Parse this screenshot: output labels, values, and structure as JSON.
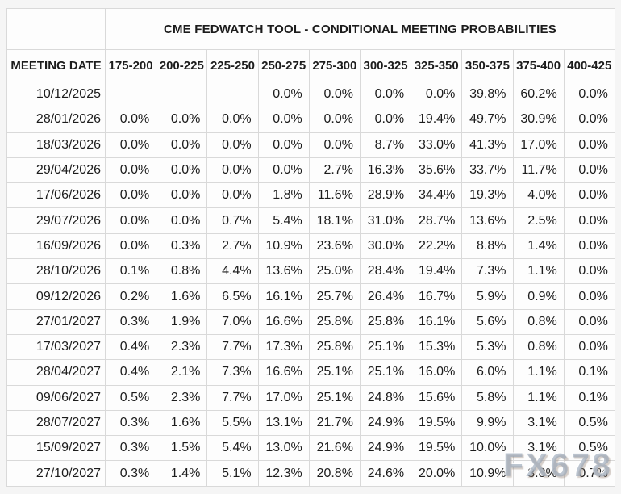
{
  "page": {
    "title": "CME FEDWATCH TOOL - CONDITIONAL MEETING PROBABILITIES",
    "watermark": "FX678"
  },
  "colors": {
    "highlight_cyan": "#c2edf6",
    "highlight_yellow": "#f5f4d3",
    "border": "#d9d9d9",
    "cell_bg": "#fdfdfd",
    "page_bg": "#f5f5f5",
    "text": "#1c1c1c"
  },
  "chart_data": {
    "type": "table",
    "title": "CME FEDWATCH TOOL - CONDITIONAL MEETING PROBABILITIES",
    "columns": [
      "MEETING DATE",
      "175-200",
      "200-225",
      "225-250",
      "250-275",
      "275-300",
      "300-325",
      "325-350",
      "350-375",
      "375-400",
      "400-425"
    ],
    "highlight_colors": {
      "cyan": "#c2edf6",
      "yellow": "#f5f4d3"
    },
    "rows": [
      {
        "date": "10/12/2025",
        "values": [
          "",
          "",
          "",
          "0.0%",
          "0.0%",
          "0.0%",
          "0.0%",
          "39.8%",
          "60.2%",
          "0.0%"
        ],
        "highlights": [
          "",
          "",
          "",
          "",
          "",
          "",
          "",
          "",
          "cyan",
          ""
        ]
      },
      {
        "date": "28/01/2026",
        "values": [
          "0.0%",
          "0.0%",
          "0.0%",
          "0.0%",
          "0.0%",
          "0.0%",
          "19.4%",
          "49.7%",
          "30.9%",
          "0.0%"
        ],
        "highlights": [
          "",
          "",
          "",
          "",
          "",
          "",
          "",
          "cyan",
          "yellow",
          ""
        ]
      },
      {
        "date": "18/03/2026",
        "values": [
          "0.0%",
          "0.0%",
          "0.0%",
          "0.0%",
          "0.0%",
          "8.7%",
          "33.0%",
          "41.3%",
          "17.0%",
          "0.0%"
        ],
        "highlights": [
          "",
          "",
          "",
          "",
          "",
          "",
          "",
          "cyan",
          "yellow",
          ""
        ]
      },
      {
        "date": "29/04/2026",
        "values": [
          "0.0%",
          "0.0%",
          "0.0%",
          "0.0%",
          "2.7%",
          "16.3%",
          "35.6%",
          "33.7%",
          "11.7%",
          "0.0%"
        ],
        "highlights": [
          "",
          "",
          "",
          "",
          "",
          "",
          "cyan",
          "yellow",
          "yellow",
          ""
        ]
      },
      {
        "date": "17/06/2026",
        "values": [
          "0.0%",
          "0.0%",
          "0.0%",
          "1.8%",
          "11.6%",
          "28.9%",
          "34.4%",
          "19.3%",
          "4.0%",
          "0.0%"
        ],
        "highlights": [
          "",
          "",
          "",
          "",
          "",
          "",
          "cyan",
          "yellow",
          "yellow",
          ""
        ]
      },
      {
        "date": "29/07/2026",
        "values": [
          "0.0%",
          "0.0%",
          "0.7%",
          "5.4%",
          "18.1%",
          "31.0%",
          "28.7%",
          "13.6%",
          "2.5%",
          "0.0%"
        ],
        "highlights": [
          "",
          "",
          "",
          "",
          "",
          "cyan",
          "yellow",
          "yellow",
          "yellow",
          ""
        ]
      },
      {
        "date": "16/09/2026",
        "values": [
          "0.0%",
          "0.3%",
          "2.7%",
          "10.9%",
          "23.6%",
          "30.0%",
          "22.2%",
          "8.8%",
          "1.4%",
          "0.0%"
        ],
        "highlights": [
          "",
          "",
          "",
          "",
          "",
          "cyan",
          "yellow",
          "yellow",
          "yellow",
          ""
        ]
      },
      {
        "date": "28/10/2026",
        "values": [
          "0.1%",
          "0.8%",
          "4.4%",
          "13.6%",
          "25.0%",
          "28.4%",
          "19.4%",
          "7.3%",
          "1.1%",
          "0.0%"
        ],
        "highlights": [
          "",
          "",
          "",
          "",
          "",
          "cyan",
          "yellow",
          "yellow",
          "yellow",
          ""
        ]
      },
      {
        "date": "09/12/2026",
        "values": [
          "0.2%",
          "1.6%",
          "6.5%",
          "16.1%",
          "25.7%",
          "26.4%",
          "16.7%",
          "5.9%",
          "0.9%",
          "0.0%"
        ],
        "highlights": [
          "",
          "",
          "",
          "",
          "",
          "cyan",
          "yellow",
          "yellow",
          "yellow",
          ""
        ]
      },
      {
        "date": "27/01/2027",
        "values": [
          "0.3%",
          "1.9%",
          "7.0%",
          "16.6%",
          "25.8%",
          "25.8%",
          "16.1%",
          "5.6%",
          "0.8%",
          "0.0%"
        ],
        "highlights": [
          "",
          "",
          "",
          "",
          "",
          "cyan",
          "yellow",
          "yellow",
          "yellow",
          ""
        ]
      },
      {
        "date": "17/03/2027",
        "values": [
          "0.4%",
          "2.3%",
          "7.7%",
          "17.3%",
          "25.8%",
          "25.1%",
          "15.3%",
          "5.3%",
          "0.8%",
          "0.0%"
        ],
        "highlights": [
          "",
          "",
          "",
          "",
          "cyan",
          "yellow",
          "yellow",
          "yellow",
          "yellow",
          ""
        ]
      },
      {
        "date": "28/04/2027",
        "values": [
          "0.4%",
          "2.1%",
          "7.3%",
          "16.6%",
          "25.1%",
          "25.1%",
          "16.0%",
          "6.0%",
          "1.1%",
          "0.1%"
        ],
        "highlights": [
          "",
          "",
          "",
          "",
          "",
          "cyan",
          "yellow",
          "yellow",
          "yellow",
          ""
        ]
      },
      {
        "date": "09/06/2027",
        "values": [
          "0.5%",
          "2.3%",
          "7.7%",
          "17.0%",
          "25.1%",
          "24.8%",
          "15.6%",
          "5.8%",
          "1.1%",
          "0.1%"
        ],
        "highlights": [
          "",
          "",
          "",
          "",
          "cyan",
          "yellow",
          "yellow",
          "yellow",
          "yellow",
          ""
        ]
      },
      {
        "date": "28/07/2027",
        "values": [
          "0.3%",
          "1.6%",
          "5.5%",
          "13.1%",
          "21.7%",
          "24.9%",
          "19.5%",
          "9.9%",
          "3.1%",
          "0.5%"
        ],
        "highlights": [
          "",
          "",
          "",
          "",
          "",
          "cyan",
          "yellow",
          "yellow",
          "yellow",
          ""
        ]
      },
      {
        "date": "15/09/2027",
        "values": [
          "0.3%",
          "1.5%",
          "5.4%",
          "13.0%",
          "21.6%",
          "24.9%",
          "19.5%",
          "10.0%",
          "3.1%",
          "0.5%"
        ],
        "highlights": [
          "",
          "",
          "",
          "",
          "",
          "cyan",
          "yellow",
          "yellow",
          "yellow",
          ""
        ]
      },
      {
        "date": "27/10/2027",
        "values": [
          "0.3%",
          "1.4%",
          "5.1%",
          "12.3%",
          "20.8%",
          "24.6%",
          "20.0%",
          "10.9%",
          "3.8%",
          "0.7%"
        ],
        "highlights": [
          "",
          "",
          "",
          "",
          "",
          "cyan",
          "yellow",
          "yellow",
          "yellow",
          ""
        ]
      }
    ]
  }
}
